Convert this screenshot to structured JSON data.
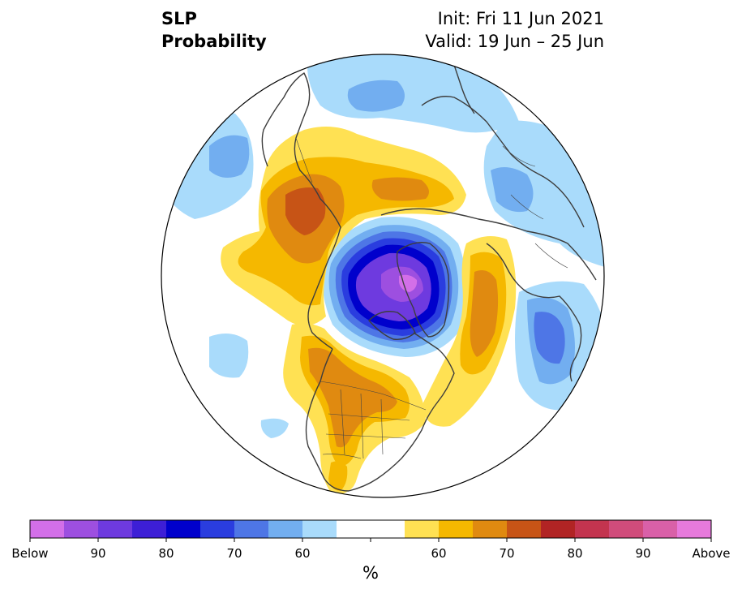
{
  "header": {
    "title_line1": "SLP",
    "title_line2": "Probability",
    "init_text": "Init: Fri 11 Jun 2021",
    "valid_text": "Valid: 19 Jun – 25 Jun"
  },
  "colorbar": {
    "unit": "%",
    "colors": [
      "#d36fe8",
      "#9d4fe0",
      "#6e3adf",
      "#3d1fd6",
      "#0000cc",
      "#2a3ddf",
      "#4e76e6",
      "#72aef0",
      "#a9dbfb",
      "#ffffff",
      "#ffffff",
      "#ffe153",
      "#f5b800",
      "#e08a10",
      "#c75416",
      "#b12424",
      "#c3344f",
      "#d04c7b",
      "#d960a8",
      "#e77adc"
    ],
    "tick_labels": [
      "Below",
      "90",
      "80",
      "70",
      "60",
      "60",
      "70",
      "80",
      "90",
      "Above"
    ]
  },
  "map_fields": {
    "colors": {
      "blue_light": "#a9dbfb",
      "blue_mid": "#72aef0",
      "blue_strong": "#4e76e6",
      "blue_deep": "#2a3ddf",
      "blue_darkest": "#0000cc",
      "purple": "#6e3adf",
      "violet": "#9d4fe0",
      "orchid": "#d36fe8",
      "yellow": "#ffe153",
      "gold": "#f5b800",
      "orange": "#e08a10",
      "rust": "#c75416",
      "coastline": "#3d3d3d"
    }
  }
}
